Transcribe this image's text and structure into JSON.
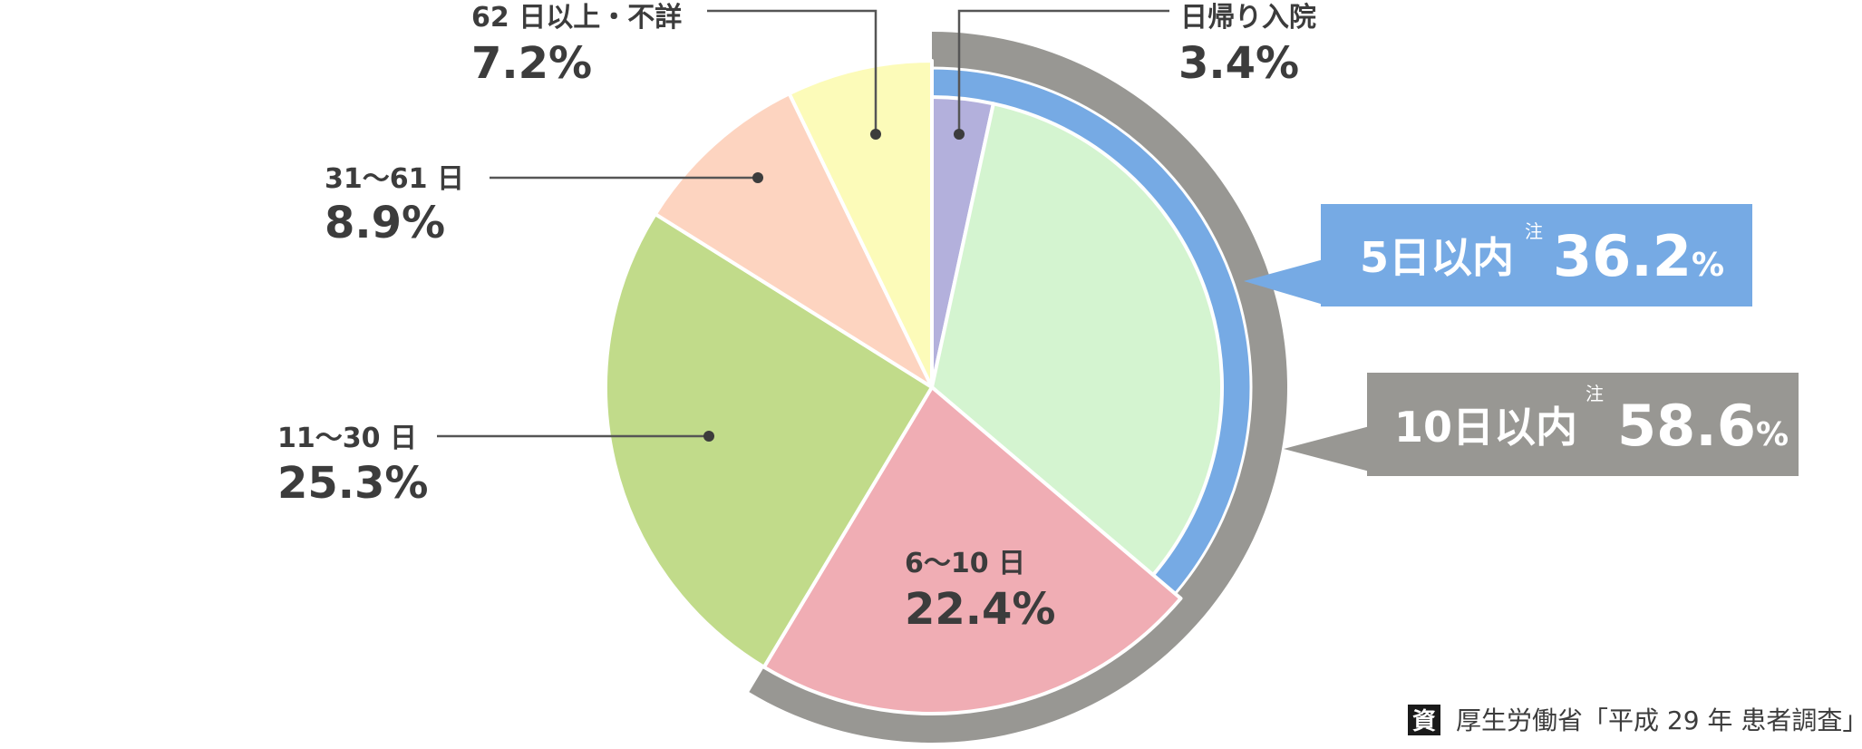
{
  "chart_data": {
    "type": "pie",
    "title": "",
    "slices": [
      {
        "label": "日帰り入院",
        "value": 3.4,
        "value_label": "3.4%",
        "color": "#b3b0dc"
      },
      {
        "label": "",
        "value": 32.8,
        "value_label": "",
        "color": "#d4f4d0"
      },
      {
        "label": "6～10 日",
        "value": 22.4,
        "value_label": "22.4%",
        "color": "#f0adb4"
      },
      {
        "label": "11～30 日",
        "value": 25.3,
        "value_label": "25.3%",
        "color": "#c1db8a"
      },
      {
        "label": "31～61 日",
        "value": 8.9,
        "value_label": "8.9%",
        "color": "#fdd4c0"
      },
      {
        "label": "62 日以上・不詳",
        "value": 7.2,
        "value_label": "7.2%",
        "color": "#fcfbb9"
      }
    ],
    "groups": [
      {
        "label": "5日以内",
        "note": "注",
        "value": 36.2,
        "value_text": "36.2",
        "unit": "%",
        "color": "#76aae4"
      },
      {
        "label": "10日以内",
        "note": "注",
        "value": 58.6,
        "value_text": "58.6",
        "unit": "%",
        "color": "#989793"
      }
    ],
    "start_angle_deg": 0,
    "direction": "clockwise"
  },
  "source": {
    "badge": "資",
    "text": "厚生労働省「平成 29 年 患者調査」"
  }
}
